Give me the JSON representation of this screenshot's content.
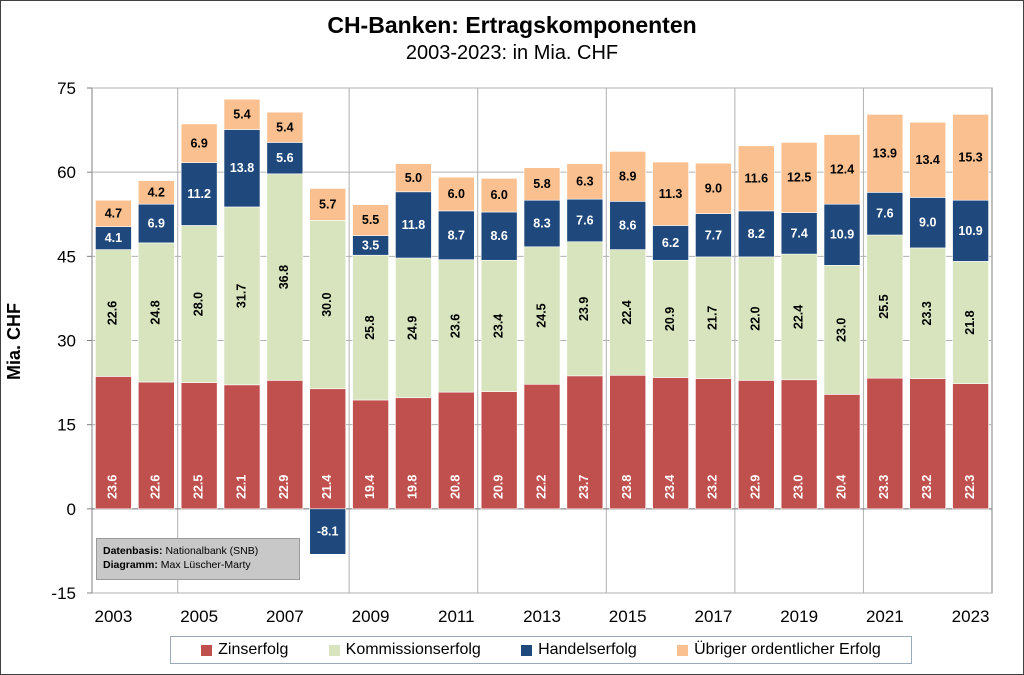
{
  "chart_data": {
    "type": "bar",
    "stacked": true,
    "title": "CH-Banken: Ertragskomponenten",
    "subtitle": "2003-2023: in Mia. CHF",
    "ylabel": "Mia. CHF",
    "ylim": [
      -15,
      75
    ],
    "yticks": [
      "75",
      "60",
      "45",
      "30",
      "15",
      "0",
      "-15"
    ],
    "ytick_values": [
      75,
      60,
      45,
      30,
      15,
      0,
      -15
    ],
    "xtick_labels": [
      "2003",
      "2005",
      "2007",
      "2009",
      "2011",
      "2013",
      "2015",
      "2017",
      "2019",
      "2021",
      "2023"
    ],
    "categories": [
      "2003",
      "2004",
      "2005",
      "2006",
      "2007",
      "2008",
      "2009",
      "2010",
      "2011",
      "2012",
      "2013",
      "2014",
      "2015",
      "2016",
      "2017",
      "2018",
      "2019",
      "2020",
      "2021",
      "2022",
      "2023"
    ],
    "grid": true,
    "legend_position": "bottom",
    "series": [
      {
        "name": "Zinserfolg",
        "color": "#c0504d",
        "values": [
          23.6,
          22.6,
          22.5,
          22.1,
          22.9,
          21.4,
          19.4,
          19.8,
          20.8,
          20.9,
          22.2,
          23.7,
          23.8,
          23.4,
          23.2,
          22.9,
          23.0,
          20.4,
          23.3,
          23.2,
          22.3
        ],
        "labels": [
          "23.6",
          "22.6",
          "22.5",
          "22.1",
          "22.9",
          "21.4",
          "19.4",
          "19.8",
          "20.8",
          "20.9",
          "22.2",
          "23.7",
          "23.8",
          "23.4",
          "23.2",
          "22.9",
          "23.0",
          "20.4",
          "23.3",
          "23.2",
          "22.3"
        ]
      },
      {
        "name": "Kommissionserfolg",
        "color": "#d7e4bd",
        "values": [
          22.6,
          24.8,
          28.0,
          31.7,
          36.8,
          30.0,
          25.8,
          24.9,
          23.6,
          23.4,
          24.5,
          23.9,
          22.4,
          20.9,
          21.7,
          22.0,
          22.4,
          23.0,
          25.5,
          23.3,
          21.8
        ],
        "labels": [
          "22.6",
          "24.8",
          "28.0",
          "31.7",
          "36.8",
          "30.0",
          "25.8",
          "24.9",
          "23.6",
          "23.4",
          "24.5",
          "23.9",
          "22.4",
          "20.9",
          "21.7",
          "22.0",
          "22.4",
          "23.0",
          "25.5",
          "23.3",
          "21.8"
        ]
      },
      {
        "name": "Handelserfolg",
        "color": "#1f497d",
        "values": [
          4.1,
          6.9,
          11.2,
          13.8,
          5.6,
          -8.1,
          3.5,
          11.8,
          8.7,
          8.6,
          8.3,
          7.6,
          8.6,
          6.2,
          7.7,
          8.2,
          7.4,
          10.9,
          7.6,
          9.0,
          10.9
        ],
        "labels": [
          "4.1",
          "6.9",
          "11.2",
          "13.8",
          "5.6",
          "-8.1",
          "3.5",
          "11.8",
          "8.7",
          "8.6",
          "8.3",
          "7.6",
          "8.6",
          "6.2",
          "7.7",
          "8.2",
          "7.4",
          "10.9",
          "7.6",
          "9.0",
          "10.9"
        ]
      },
      {
        "name": "Übriger ordentlicher Erfolg",
        "color": "#fac090",
        "values": [
          4.7,
          4.2,
          6.9,
          5.4,
          5.4,
          5.7,
          5.5,
          5.0,
          6.0,
          6.0,
          5.8,
          6.3,
          8.9,
          11.3,
          9.0,
          11.6,
          12.5,
          12.4,
          13.9,
          13.4,
          15.3
        ],
        "labels": [
          "4.7",
          "4.2",
          "6.9",
          "5.4",
          "5.4",
          "5.7",
          "5.5",
          "5.0",
          "6.0",
          "6.0",
          "5.8",
          "6.3",
          "8.9",
          "11.3",
          "9.0",
          "11.6",
          "12.5",
          "12.4",
          "13.9",
          "13.4",
          "15.3"
        ]
      }
    ]
  },
  "source": {
    "datenbasis_label": "Datenbasis:",
    "datenbasis_value": "Nationalbank (SNB)",
    "diagramm_label": "Diagramm:",
    "diagramm_value": "Max Lüscher-Marty"
  },
  "legend": [
    {
      "label": "Zinserfolg",
      "color": "#c0504d"
    },
    {
      "label": "Kommissionserfolg",
      "color": "#d7e4bd"
    },
    {
      "label": "Handelserfolg",
      "color": "#1f497d"
    },
    {
      "label": "Übriger ordentlicher Erfolg",
      "color": "#fac090"
    }
  ]
}
